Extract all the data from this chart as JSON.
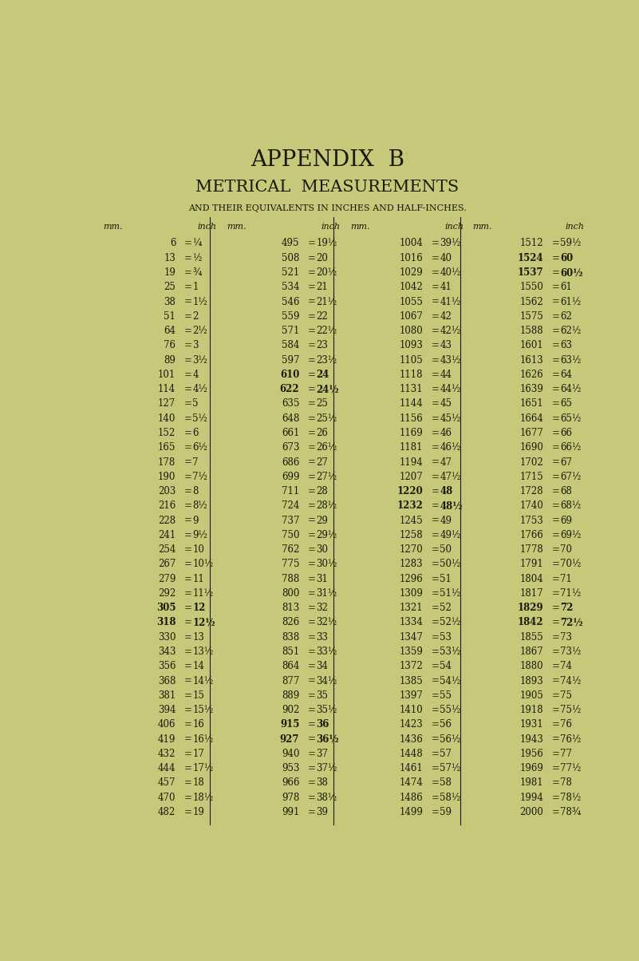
{
  "title1": "APPENDIX  B",
  "title2": "METRICAL  MEASUREMENTS",
  "title3": "AND THEIR EQUIVALENTS IN INCHES AND HALF-INCHES.",
  "bg_color": "#c8c87a",
  "text_color": "#1a1a0a",
  "col1": [
    [
      "6",
      "¼"
    ],
    [
      "13",
      "½"
    ],
    [
      "19",
      "¾"
    ],
    [
      "25",
      "1"
    ],
    [
      "38",
      "1½"
    ],
    [
      "51",
      "2"
    ],
    [
      "64",
      "2½"
    ],
    [
      "76",
      "3"
    ],
    [
      "89",
      "3½"
    ],
    [
      "101",
      "4"
    ],
    [
      "114",
      "4½"
    ],
    [
      "127",
      "5"
    ],
    [
      "140",
      "5½"
    ],
    [
      "152",
      "6"
    ],
    [
      "165",
      "6½"
    ],
    [
      "178",
      "7"
    ],
    [
      "190",
      "7½"
    ],
    [
      "203",
      "8"
    ],
    [
      "216",
      "8½"
    ],
    [
      "228",
      "9"
    ],
    [
      "241",
      "9½"
    ],
    [
      "254",
      "10"
    ],
    [
      "267",
      "10½"
    ],
    [
      "279",
      "11"
    ],
    [
      "292",
      "11½"
    ],
    [
      "305",
      "12"
    ],
    [
      "318",
      "12½"
    ],
    [
      "330",
      "13"
    ],
    [
      "343",
      "13½"
    ],
    [
      "356",
      "14"
    ],
    [
      "368",
      "14½"
    ],
    [
      "381",
      "15"
    ],
    [
      "394",
      "15½"
    ],
    [
      "406",
      "16"
    ],
    [
      "419",
      "16½"
    ],
    [
      "432",
      "17"
    ],
    [
      "444",
      "17½"
    ],
    [
      "457",
      "18"
    ],
    [
      "470",
      "18½"
    ],
    [
      "482",
      "19"
    ]
  ],
  "col2": [
    [
      "495",
      "19½"
    ],
    [
      "508",
      "20"
    ],
    [
      "521",
      "20½"
    ],
    [
      "534",
      "21"
    ],
    [
      "546",
      "21½"
    ],
    [
      "559",
      "22"
    ],
    [
      "571",
      "22½"
    ],
    [
      "584",
      "23"
    ],
    [
      "597",
      "23½"
    ],
    [
      "610",
      "24"
    ],
    [
      "622",
      "24½"
    ],
    [
      "635",
      "25"
    ],
    [
      "648",
      "25½"
    ],
    [
      "661",
      "26"
    ],
    [
      "673",
      "26½"
    ],
    [
      "686",
      "27"
    ],
    [
      "699",
      "27½"
    ],
    [
      "711",
      "28"
    ],
    [
      "724",
      "28½"
    ],
    [
      "737",
      "29"
    ],
    [
      "750",
      "29½"
    ],
    [
      "762",
      "30"
    ],
    [
      "775",
      "30½"
    ],
    [
      "788",
      "31"
    ],
    [
      "800",
      "31½"
    ],
    [
      "813",
      "32"
    ],
    [
      "826",
      "32½"
    ],
    [
      "838",
      "33"
    ],
    [
      "851",
      "33½"
    ],
    [
      "864",
      "34"
    ],
    [
      "877",
      "34½"
    ],
    [
      "889",
      "35"
    ],
    [
      "902",
      "35½"
    ],
    [
      "915",
      "36"
    ],
    [
      "927",
      "36½"
    ],
    [
      "940",
      "37"
    ],
    [
      "953",
      "37½"
    ],
    [
      "966",
      "38"
    ],
    [
      "978",
      "38½"
    ],
    [
      "991",
      "39"
    ]
  ],
  "col3": [
    [
      "1004",
      "39½"
    ],
    [
      "1016",
      "40"
    ],
    [
      "1029",
      "40½"
    ],
    [
      "1042",
      "41"
    ],
    [
      "1055",
      "41½"
    ],
    [
      "1067",
      "42"
    ],
    [
      "1080",
      "42½"
    ],
    [
      "1093",
      "43"
    ],
    [
      "1105",
      "43½"
    ],
    [
      "1118",
      "44"
    ],
    [
      "1131",
      "44½"
    ],
    [
      "1144",
      "45"
    ],
    [
      "1156",
      "45½"
    ],
    [
      "1169",
      "46"
    ],
    [
      "1181",
      "46½"
    ],
    [
      "1194",
      "47"
    ],
    [
      "1207",
      "47½"
    ],
    [
      "1220",
      "48"
    ],
    [
      "1232",
      "48½"
    ],
    [
      "1245",
      "49"
    ],
    [
      "1258",
      "49½"
    ],
    [
      "1270",
      "50"
    ],
    [
      "1283",
      "50½"
    ],
    [
      "1296",
      "51"
    ],
    [
      "1309",
      "51½"
    ],
    [
      "1321",
      "52"
    ],
    [
      "1334",
      "52½"
    ],
    [
      "1347",
      "53"
    ],
    [
      "1359",
      "53½"
    ],
    [
      "1372",
      "54"
    ],
    [
      "1385",
      "54½"
    ],
    [
      "1397",
      "55"
    ],
    [
      "1410",
      "55½"
    ],
    [
      "1423",
      "56"
    ],
    [
      "1436",
      "56½"
    ],
    [
      "1448",
      "57"
    ],
    [
      "1461",
      "57½"
    ],
    [
      "1474",
      "58"
    ],
    [
      "1486",
      "58½"
    ],
    [
      "1499",
      "59"
    ]
  ],
  "col4": [
    [
      "1512",
      "59½"
    ],
    [
      "1524",
      "60"
    ],
    [
      "1537",
      "60½"
    ],
    [
      "1550",
      "61"
    ],
    [
      "1562",
      "61½"
    ],
    [
      "1575",
      "62"
    ],
    [
      "1588",
      "62½"
    ],
    [
      "1601",
      "63"
    ],
    [
      "1613",
      "63½"
    ],
    [
      "1626",
      "64"
    ],
    [
      "1639",
      "64½"
    ],
    [
      "1651",
      "65"
    ],
    [
      "1664",
      "65½"
    ],
    [
      "1677",
      "66"
    ],
    [
      "1690",
      "66½"
    ],
    [
      "1702",
      "67"
    ],
    [
      "1715",
      "67½"
    ],
    [
      "1728",
      "68"
    ],
    [
      "1740",
      "68½"
    ],
    [
      "1753",
      "69"
    ],
    [
      "1766",
      "69½"
    ],
    [
      "1778",
      "70"
    ],
    [
      "1791",
      "70½"
    ],
    [
      "1804",
      "71"
    ],
    [
      "1817",
      "71½"
    ],
    [
      "1829",
      "72"
    ],
    [
      "1842",
      "72½"
    ],
    [
      "1855",
      "73"
    ],
    [
      "1867",
      "73½"
    ],
    [
      "1880",
      "74"
    ],
    [
      "1893",
      "74½"
    ],
    [
      "1905",
      "75"
    ],
    [
      "1918",
      "75½"
    ],
    [
      "1931",
      "76"
    ],
    [
      "1943",
      "76½"
    ],
    [
      "1956",
      "77"
    ],
    [
      "1969",
      "77½"
    ],
    [
      "1981",
      "78"
    ],
    [
      "1994",
      "78½"
    ],
    [
      "2000",
      "78¾"
    ]
  ]
}
